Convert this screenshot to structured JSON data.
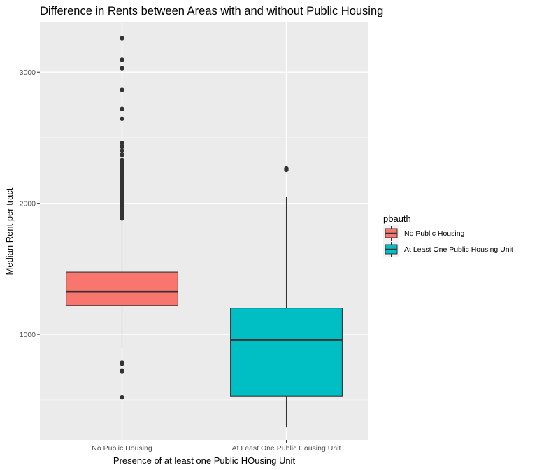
{
  "chart_data": {
    "type": "boxplot",
    "title": "Difference in Rents between Areas with and without Public Housing",
    "xlabel": "Presence of at least one Public HOusing Unit",
    "ylabel": "Median Rent per tract",
    "ylim": [
      195,
      3380
    ],
    "yticks": [
      1000,
      2000,
      3000
    ],
    "grid": true,
    "legend": {
      "title": "pbauth",
      "position": "right"
    },
    "categories": [
      "No Public Housing",
      "At Least One Public Housing Unit"
    ],
    "series": [
      {
        "name": "No Public Housing",
        "color": "#F8766D",
        "whisker_low": 900,
        "q1": 1220,
        "median": 1325,
        "q3": 1475,
        "whisker_high": 1870,
        "outliers": [
          3260,
          3095,
          3030,
          2865,
          2720,
          2645,
          2460,
          2430,
          2400,
          2370,
          2330,
          2315,
          2300,
          2280,
          2260,
          2240,
          2220,
          2200,
          2180,
          2160,
          2140,
          2120,
          2100,
          2080,
          2060,
          2040,
          2020,
          2000,
          1980,
          1960,
          1940,
          1920,
          1900,
          1885,
          785,
          775,
          725,
          715,
          520
        ]
      },
      {
        "name": "At Least One Public Housing Unit",
        "color": "#00BFC4",
        "whisker_low": 290,
        "q1": 530,
        "median": 960,
        "q3": 1200,
        "whisker_high": 2050,
        "outliers": [
          2265,
          2255
        ]
      }
    ]
  }
}
